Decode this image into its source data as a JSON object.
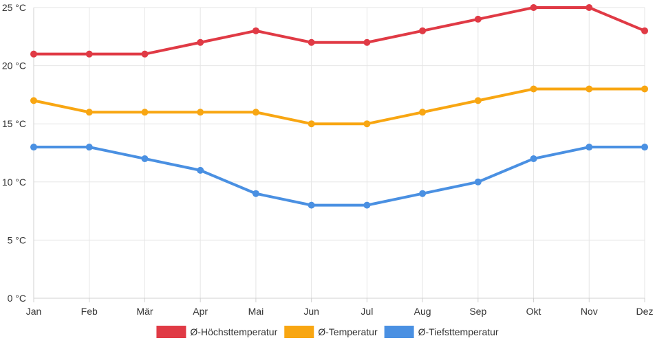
{
  "chart_data": {
    "type": "line",
    "title": "",
    "xlabel": "",
    "ylabel": "",
    "categories": [
      "Jan",
      "Feb",
      "Mär",
      "Apr",
      "Mai",
      "Jun",
      "Jul",
      "Aug",
      "Sep",
      "Okt",
      "Nov",
      "Dez"
    ],
    "ylim": [
      0,
      25
    ],
    "yticks": [
      0,
      5,
      10,
      15,
      20,
      25
    ],
    "ytick_labels": [
      "0 °C",
      "5 °C",
      "10 °C",
      "15 °C",
      "20 °C",
      "25 °C"
    ],
    "grid": true,
    "legend_position": "bottom",
    "series": [
      {
        "name": "Ø-Höchsttemperatur",
        "color": "#e03a45",
        "values": [
          21,
          21,
          21,
          22,
          23,
          22,
          22,
          23,
          24,
          25,
          25,
          23
        ]
      },
      {
        "name": "Ø-Temperatur",
        "color": "#f8a612",
        "values": [
          17,
          16,
          16,
          16,
          16,
          15,
          15,
          16,
          17,
          18,
          18,
          18
        ]
      },
      {
        "name": "Ø-Tiefsttemperatur",
        "color": "#4a90e2",
        "values": [
          13,
          13,
          12,
          11,
          9,
          8,
          8,
          9,
          10,
          12,
          13,
          13
        ]
      }
    ]
  }
}
